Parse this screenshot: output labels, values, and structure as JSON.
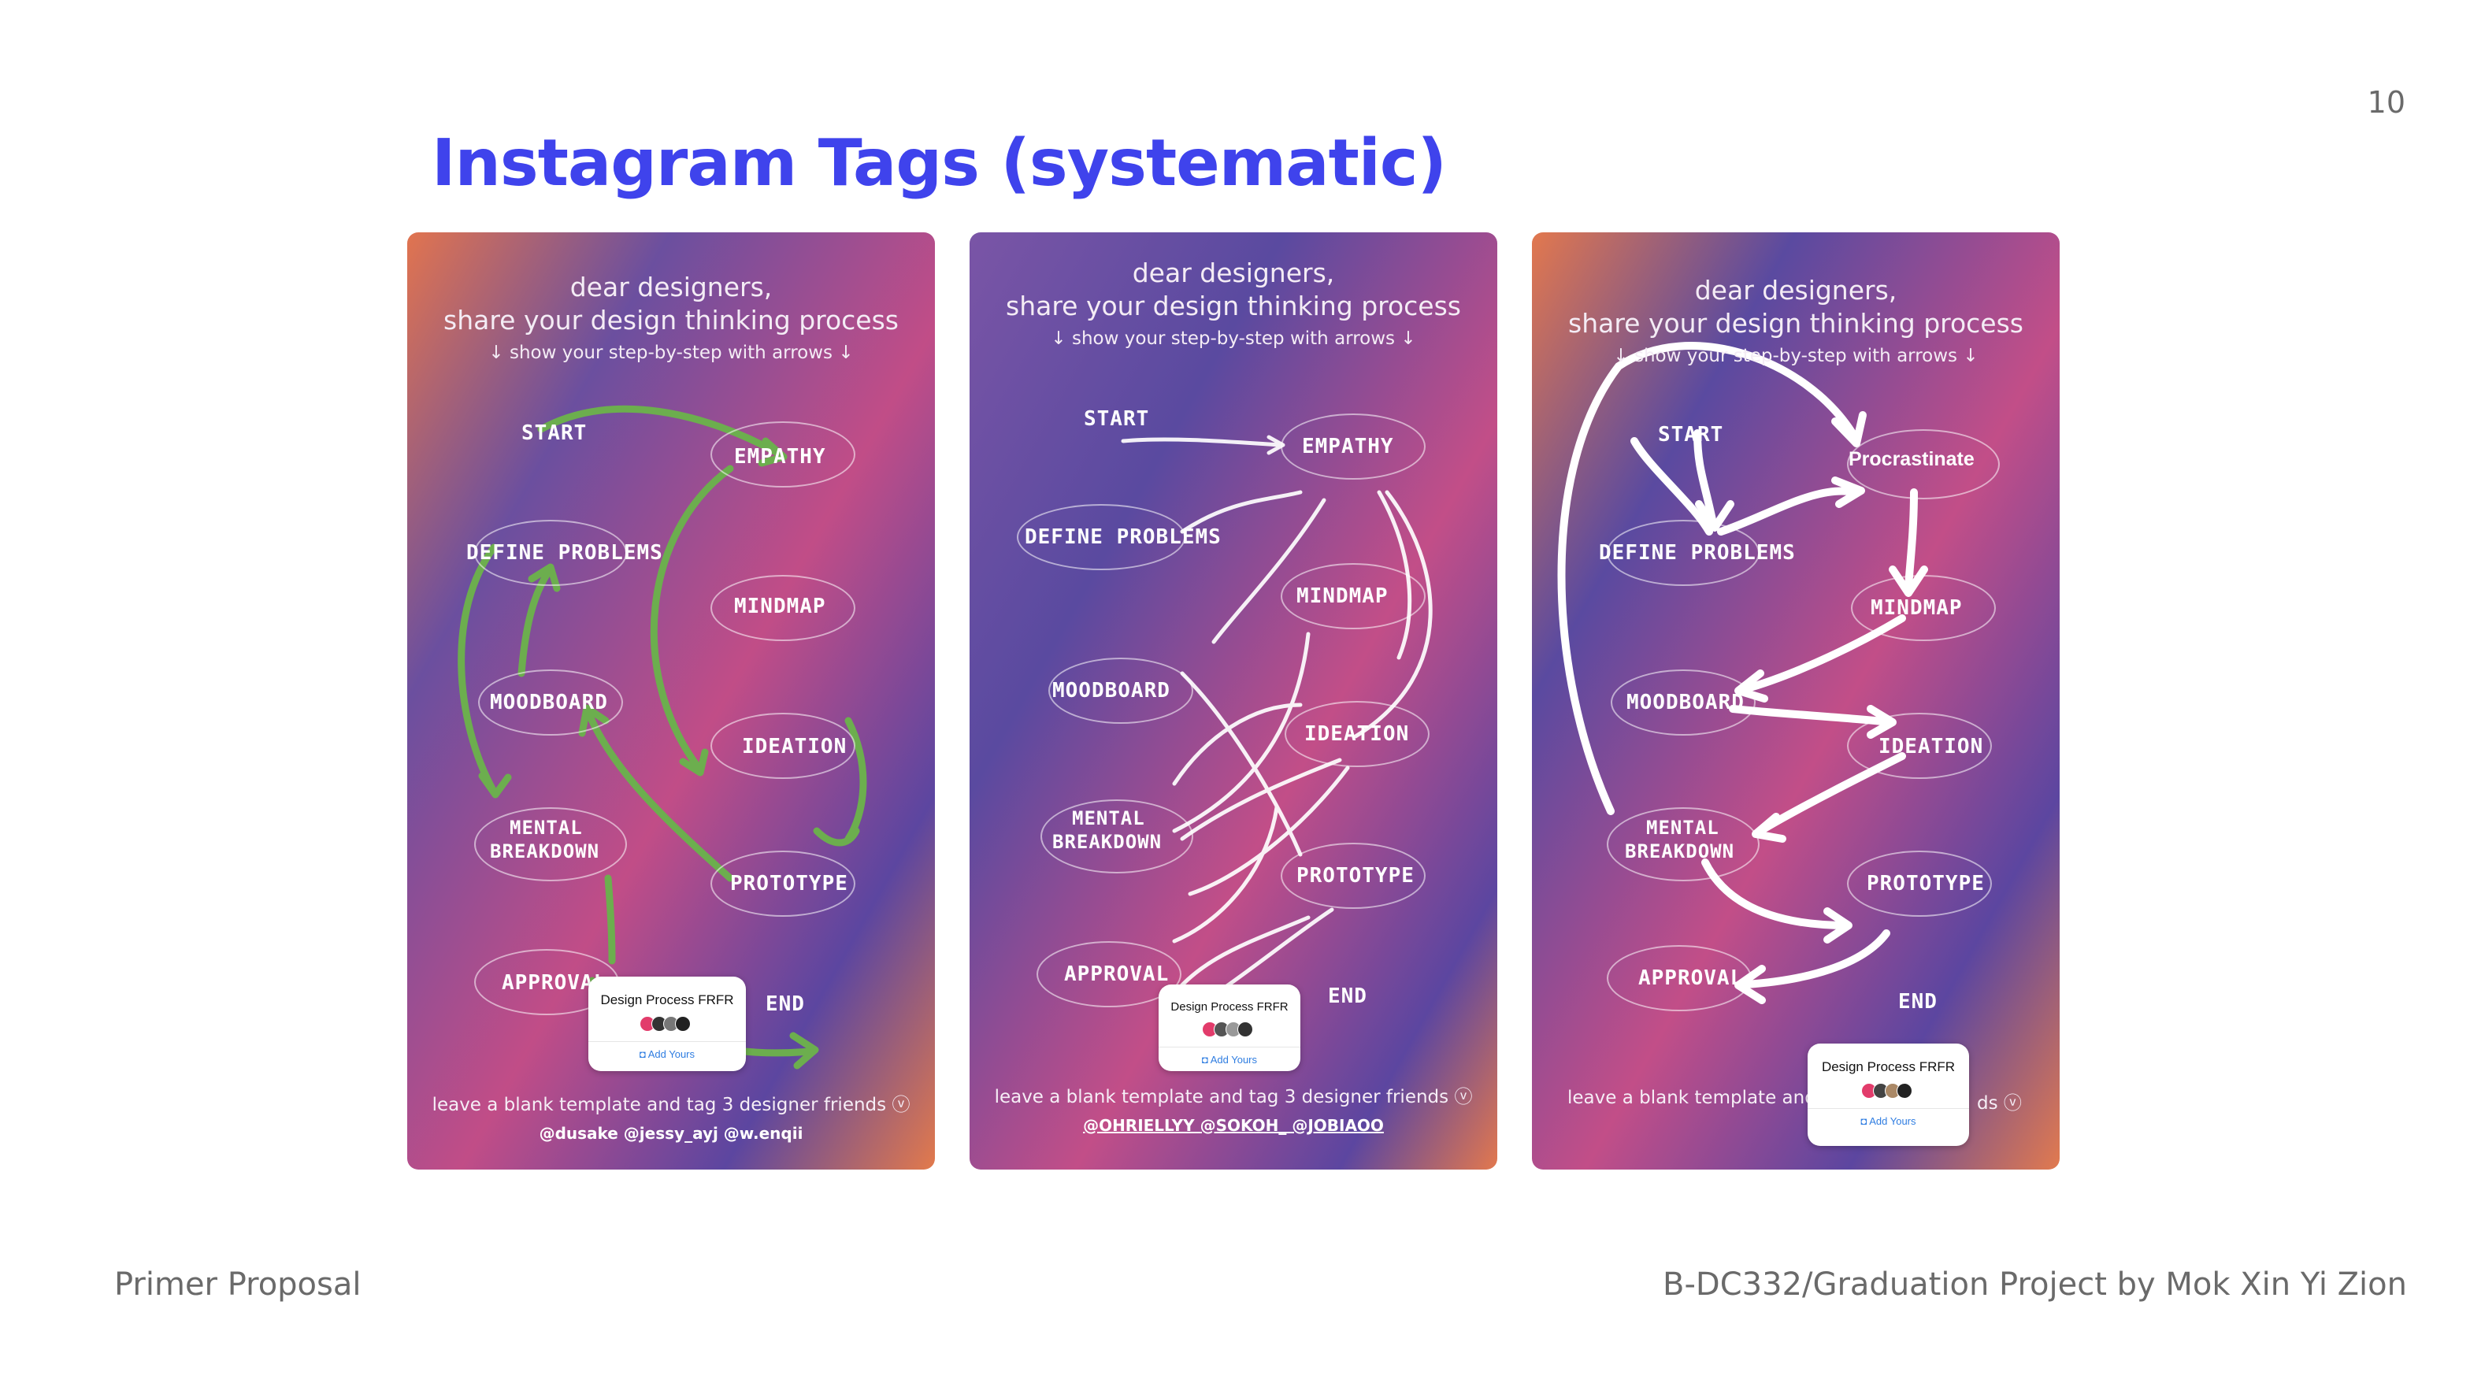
{
  "page_number": "10",
  "title": "Instagram Tags (systematic)",
  "footer": {
    "left": "Primer Proposal",
    "right": "B-DC332/Graduation Project by Mok Xin Yi Zion"
  },
  "colors": {
    "title": "#3f43ec",
    "gradient_purple": "#5a4aa0",
    "gradient_pink": "#c9508a",
    "gradient_orange": "#e2784e",
    "green_arrows": "#6cae4e",
    "white_arrows": "#ffffff"
  },
  "story": {
    "heading_line1": "dear designers,",
    "heading_line2": "share your design thinking process",
    "heading_line3": "↓ show your step-by-step with arrows ↓",
    "nodes": {
      "start": "START",
      "empathy": "EMPATHY",
      "define": "DEFINE PROBLEMS",
      "mindmap": "MINDMAP",
      "moodboard": "MOODBOARD",
      "ideation": "IDEATION",
      "mental1": "MENTAL",
      "mental2": "BREAKDOWN",
      "prototype": "PROTOTYPE",
      "approval": "APPROVAL",
      "end": "END"
    },
    "bottom_note": "leave a blank template and tag 3 designer friends",
    "bottom_note_icon": "circle-check-icon",
    "sticker_title": "Design Process FRFR",
    "sticker_add": "Add Yours"
  },
  "panels": [
    {
      "handles": "@dusake @jessy_ayj @w.enqii",
      "arrow_color": "green"
    },
    {
      "handles": "@OHRIELLYY @SOKOH_ @JOBIAOO",
      "arrow_color": "white"
    },
    {
      "handles": "",
      "arrow_color": "white",
      "extra_label": "Procrastinate",
      "note_left": "leave a blank template and",
      "note_right": "ds"
    }
  ]
}
